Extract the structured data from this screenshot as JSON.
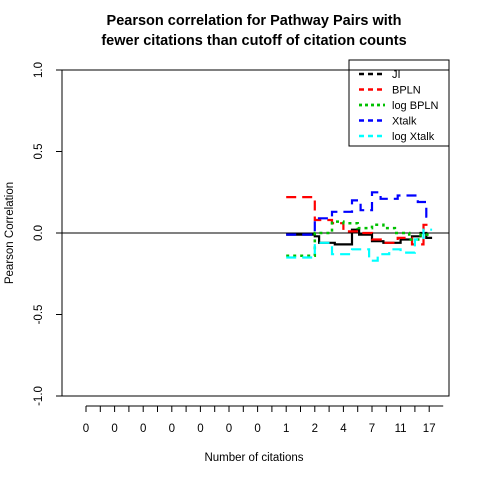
{
  "chart_data": {
    "type": "line",
    "title": [
      "Pearson correlation for Pathway Pairs with",
      "fewer citations than cutoff of citation counts"
    ],
    "xlabel": "Number of citations",
    "ylabel": "Pearson Correlation",
    "ylim": [
      -1.0,
      1.0
    ],
    "yticks": [
      "-1.0",
      "-0.5",
      "0.0",
      "0.5",
      "1.0"
    ],
    "xtick_labels": [
      "0",
      "0",
      "0",
      "0",
      "0",
      "0",
      "0",
      "1",
      "2",
      "4",
      "7",
      "11",
      "17"
    ],
    "reference_line": 0,
    "legend_position": "top-right",
    "series": [
      {
        "name": "JI",
        "color": "#000000",
        "line": "solid",
        "linewidth": 2.2,
        "points": [
          [
            7.0,
            -0.01
          ],
          [
            8.0,
            -0.01
          ],
          [
            8.0,
            -0.02
          ],
          [
            8.15,
            -0.02
          ],
          [
            8.15,
            -0.06
          ],
          [
            8.7,
            -0.06
          ],
          [
            8.7,
            -0.07
          ],
          [
            9.3,
            -0.07
          ],
          [
            9.3,
            0.02
          ],
          [
            9.55,
            0.02
          ],
          [
            9.55,
            -0.01
          ],
          [
            10.0,
            -0.01
          ],
          [
            10.0,
            -0.05
          ],
          [
            10.4,
            -0.05
          ],
          [
            10.4,
            -0.06
          ],
          [
            11.0,
            -0.06
          ],
          [
            11.0,
            -0.04
          ],
          [
            11.4,
            -0.04
          ],
          [
            11.4,
            -0.02
          ],
          [
            11.7,
            -0.02
          ],
          [
            11.7,
            0.0
          ],
          [
            11.9,
            0.0
          ],
          [
            11.9,
            -0.03
          ],
          [
            12.1,
            -0.03
          ]
        ]
      },
      {
        "name": "BPLN",
        "color": "#ff0000",
        "line": "dashed",
        "linewidth": 2.2,
        "points": [
          [
            7.0,
            0.22
          ],
          [
            8.0,
            0.22
          ],
          [
            8.0,
            0.08
          ],
          [
            8.6,
            0.08
          ],
          [
            8.6,
            0.06
          ],
          [
            9.0,
            0.06
          ],
          [
            9.0,
            0.01
          ],
          [
            9.6,
            0.01
          ],
          [
            9.6,
            0.0
          ],
          [
            10.0,
            0.0
          ],
          [
            10.0,
            -0.04
          ],
          [
            10.4,
            -0.04
          ],
          [
            10.4,
            -0.06
          ],
          [
            10.9,
            -0.06
          ],
          [
            10.9,
            -0.03
          ],
          [
            11.4,
            -0.03
          ],
          [
            11.4,
            -0.07
          ],
          [
            11.8,
            -0.07
          ],
          [
            11.8,
            0.05
          ],
          [
            12.1,
            0.05
          ]
        ]
      },
      {
        "name": "log BPLN",
        "color": "#00c000",
        "line": "dotted",
        "linewidth": 2.5,
        "points": [
          [
            7.0,
            -0.14
          ],
          [
            8.0,
            -0.14
          ],
          [
            8.0,
            0.0
          ],
          [
            8.6,
            0.0
          ],
          [
            8.6,
            0.07
          ],
          [
            9.0,
            0.07
          ],
          [
            9.0,
            0.06
          ],
          [
            9.5,
            0.06
          ],
          [
            9.5,
            0.03
          ],
          [
            10.0,
            0.03
          ],
          [
            10.0,
            0.05
          ],
          [
            10.4,
            0.05
          ],
          [
            10.4,
            0.03
          ],
          [
            10.8,
            0.03
          ],
          [
            10.8,
            0.0
          ],
          [
            11.3,
            0.0
          ],
          [
            11.3,
            -0.04
          ],
          [
            11.7,
            -0.04
          ],
          [
            11.7,
            -0.01
          ],
          [
            12.1,
            -0.01
          ]
        ]
      },
      {
        "name": "Xtalk",
        "color": "#0000ff",
        "line": "dashed",
        "linewidth": 2.2,
        "points": [
          [
            7.0,
            -0.01
          ],
          [
            8.0,
            -0.01
          ],
          [
            8.0,
            0.09
          ],
          [
            8.6,
            0.09
          ],
          [
            8.6,
            0.13
          ],
          [
            9.3,
            0.13
          ],
          [
            9.3,
            0.2
          ],
          [
            9.6,
            0.2
          ],
          [
            9.6,
            0.14
          ],
          [
            10.0,
            0.14
          ],
          [
            10.0,
            0.25
          ],
          [
            10.3,
            0.25
          ],
          [
            10.3,
            0.21
          ],
          [
            10.9,
            0.21
          ],
          [
            10.9,
            0.23
          ],
          [
            11.6,
            0.23
          ],
          [
            11.6,
            0.19
          ],
          [
            11.9,
            0.19
          ],
          [
            11.9,
            0.1
          ],
          [
            12.1,
            0.1
          ]
        ]
      },
      {
        "name": "log Xtalk",
        "color": "#00ffff",
        "line": "dashed",
        "linewidth": 2.2,
        "points": [
          [
            7.0,
            -0.15
          ],
          [
            8.0,
            -0.15
          ],
          [
            8.0,
            -0.06
          ],
          [
            8.6,
            -0.06
          ],
          [
            8.6,
            -0.13
          ],
          [
            9.3,
            -0.13
          ],
          [
            9.3,
            -0.1
          ],
          [
            9.9,
            -0.1
          ],
          [
            9.9,
            -0.17
          ],
          [
            10.2,
            -0.17
          ],
          [
            10.2,
            -0.13
          ],
          [
            10.6,
            -0.13
          ],
          [
            10.6,
            -0.1
          ],
          [
            11.0,
            -0.1
          ],
          [
            11.0,
            -0.12
          ],
          [
            11.5,
            -0.12
          ],
          [
            11.5,
            -0.04
          ],
          [
            11.8,
            -0.04
          ],
          [
            11.8,
            0.02
          ],
          [
            12.1,
            0.02
          ]
        ]
      }
    ]
  }
}
